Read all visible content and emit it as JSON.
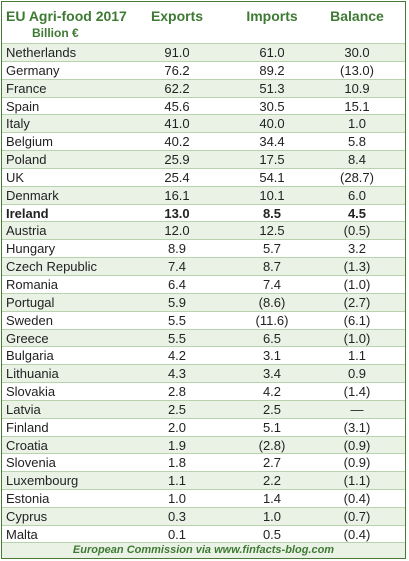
{
  "header": {
    "title": "EU Agri-food 2017",
    "subtitle": "Billion €",
    "col_exports": "Exports",
    "col_imports": "Imports",
    "col_balance": "Balance"
  },
  "footer": "European Commission via www.finfacts-blog.com",
  "colors": {
    "accent": "#3f7a34",
    "stripe": "#eaf2e6",
    "rule": "#b7d2ad"
  },
  "chart_data": {
    "type": "table",
    "title": "EU Agri-food 2017",
    "subtitle": "Billion €",
    "columns": [
      "Exports",
      "Imports",
      "Balance"
    ],
    "rows": [
      {
        "country": "Netherlands",
        "exports": "91.0",
        "imports": "61.0",
        "balance": "30.0"
      },
      {
        "country": "Germany",
        "exports": "76.2",
        "imports": "89.2",
        "balance": "(13.0)"
      },
      {
        "country": "France",
        "exports": "62.2",
        "imports": "51.3",
        "balance": "10.9"
      },
      {
        "country": "Spain",
        "exports": "45.6",
        "imports": "30.5",
        "balance": "15.1"
      },
      {
        "country": "Italy",
        "exports": "41.0",
        "imports": "40.0",
        "balance": "1.0"
      },
      {
        "country": "Belgium",
        "exports": "40.2",
        "imports": "34.4",
        "balance": "5.8"
      },
      {
        "country": "Poland",
        "exports": "25.9",
        "imports": "17.5",
        "balance": "8.4"
      },
      {
        "country": "UK",
        "exports": "25.4",
        "imports": "54.1",
        "balance": "(28.7)"
      },
      {
        "country": "Denmark",
        "exports": "16.1",
        "imports": "10.1",
        "balance": "6.0"
      },
      {
        "country": "Ireland",
        "exports": "13.0",
        "imports": "8.5",
        "balance": "4.5",
        "bold": true
      },
      {
        "country": "Austria",
        "exports": "12.0",
        "imports": "12.5",
        "balance": "(0.5)"
      },
      {
        "country": "Hungary",
        "exports": "8.9",
        "imports": "5.7",
        "balance": "3.2"
      },
      {
        "country": "Czech Republic",
        "exports": "7.4",
        "imports": "8.7",
        "balance": "(1.3)"
      },
      {
        "country": "Romania",
        "exports": "6.4",
        "imports": "7.4",
        "balance": "(1.0)"
      },
      {
        "country": "Portugal",
        "exports": "5.9",
        "imports": "(8.6)",
        "balance": "(2.7)"
      },
      {
        "country": "Sweden",
        "exports": "5.5",
        "imports": "(11.6)",
        "balance": "(6.1)"
      },
      {
        "country": "Greece",
        "exports": "5.5",
        "imports": "6.5",
        "balance": "(1.0)"
      },
      {
        "country": "Bulgaria",
        "exports": "4.2",
        "imports": "3.1",
        "balance": "1.1"
      },
      {
        "country": "Lithuania",
        "exports": "4.3",
        "imports": "3.4",
        "balance": "0.9"
      },
      {
        "country": "Slovakia",
        "exports": "2.8",
        "imports": "4.2",
        "balance": "(1.4)"
      },
      {
        "country": "Latvia",
        "exports": "2.5",
        "imports": "2.5",
        "balance": "—"
      },
      {
        "country": "Finland",
        "exports": "2.0",
        "imports": "5.1",
        "balance": "(3.1)"
      },
      {
        "country": "Croatia",
        "exports": "1.9",
        "imports": "(2.8)",
        "balance": "(0.9)"
      },
      {
        "country": "Slovenia",
        "exports": "1.8",
        "imports": "2.7",
        "balance": "(0.9)"
      },
      {
        "country": "Luxembourg",
        "exports": "1.1",
        "imports": "2.2",
        "balance": "(1.1)"
      },
      {
        "country": "Estonia",
        "exports": "1.0",
        "imports": "1.4",
        "balance": "(0.4)"
      },
      {
        "country": "Cyprus",
        "exports": "0.3",
        "imports": "1.0",
        "balance": "(0.7)"
      },
      {
        "country": "Malta",
        "exports": "0.1",
        "imports": "0.5",
        "balance": "(0.4)"
      }
    ]
  }
}
